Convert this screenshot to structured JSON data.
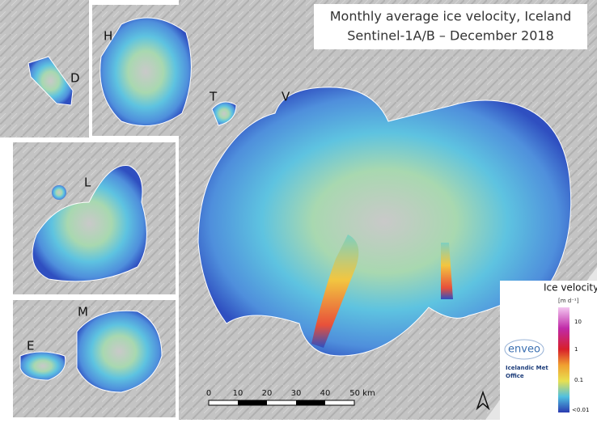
{
  "title": [
    "Monthly average ice velocity, Iceland",
    "Sentinel-1A/B – December 2018"
  ],
  "panel_labels": [
    "D",
    "H",
    "T",
    "V",
    "L",
    "M",
    "E"
  ],
  "scale_bar": [
    "0",
    "10",
    "20",
    "30",
    "40",
    "50 km"
  ],
  "legend": {
    "title": "Ice velocity",
    "unit": "[m d⁻¹]",
    "labels": [
      "10",
      "1",
      "0.1",
      "<0.01"
    ]
  },
  "logos": [
    "enveo",
    "Icelandic Met",
    "Office"
  ]
}
